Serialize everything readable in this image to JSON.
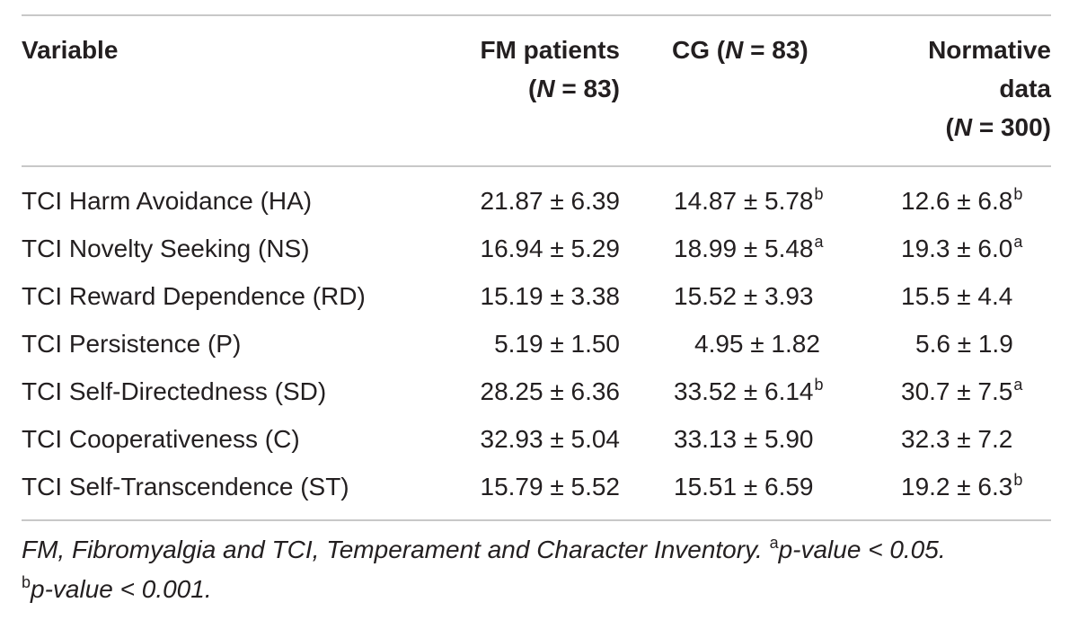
{
  "table": {
    "headers": {
      "variable": "Variable",
      "fm_line1": "FM patients",
      "fm_line2_n": "N",
      "fm_line2_rest": " = 83)",
      "cg_label": "CG (",
      "cg_n": "N",
      "cg_rest": " = 83)",
      "norm_line1": "Normative",
      "norm_line2": "data",
      "norm_line3_n": "N",
      "norm_line3_rest": " = 300)"
    },
    "rows": [
      {
        "variable": "TCI Harm Avoidance (HA)",
        "fm": "21.87 ± 6.39",
        "cg": "14.87 ± 5.78",
        "cg_sup": "b",
        "norm": "12.6 ± 6.8",
        "norm_sup": "b"
      },
      {
        "variable": "TCI Novelty Seeking (NS)",
        "fm": "16.94 ± 5.29",
        "cg": "18.99 ± 5.48",
        "cg_sup": "a",
        "norm": "19.3 ± 6.0",
        "norm_sup": "a"
      },
      {
        "variable": "TCI Reward Dependence (RD)",
        "fm": "15.19 ± 3.38",
        "cg": "15.52 ± 3.93",
        "cg_sup": "",
        "norm": "15.5 ± 4.4",
        "norm_sup": ""
      },
      {
        "variable": "TCI Persistence (P)",
        "fm": "5.19 ± 1.50",
        "cg": "4.95 ± 1.82",
        "cg_sup": "",
        "norm": "5.6 ± 1.9",
        "norm_sup": ""
      },
      {
        "variable": "TCI Self-Directedness (SD)",
        "fm": "28.25 ± 6.36",
        "cg": "33.52 ± 6.14",
        "cg_sup": "b",
        "norm": "30.7 ± 7.5",
        "norm_sup": "a"
      },
      {
        "variable": "TCI Cooperativeness (C)",
        "fm": "32.93 ± 5.04",
        "cg": "33.13 ± 5.90",
        "cg_sup": "",
        "norm": "32.3 ± 7.2",
        "norm_sup": ""
      },
      {
        "variable": "TCI Self-Transcendence (ST)",
        "fm": "15.79 ± 5.52",
        "cg": "15.51 ± 6.59",
        "cg_sup": "",
        "norm": "19.2 ± 6.3",
        "norm_sup": "b"
      }
    ]
  },
  "footnote": {
    "text1": "FM, Fibromyalgia and TCI, Temperament and Character Inventory. ",
    "sup_a": "a",
    "text2": "p-value < 0.05. ",
    "sup_b": "b",
    "text3": "p-value < 0.001."
  }
}
